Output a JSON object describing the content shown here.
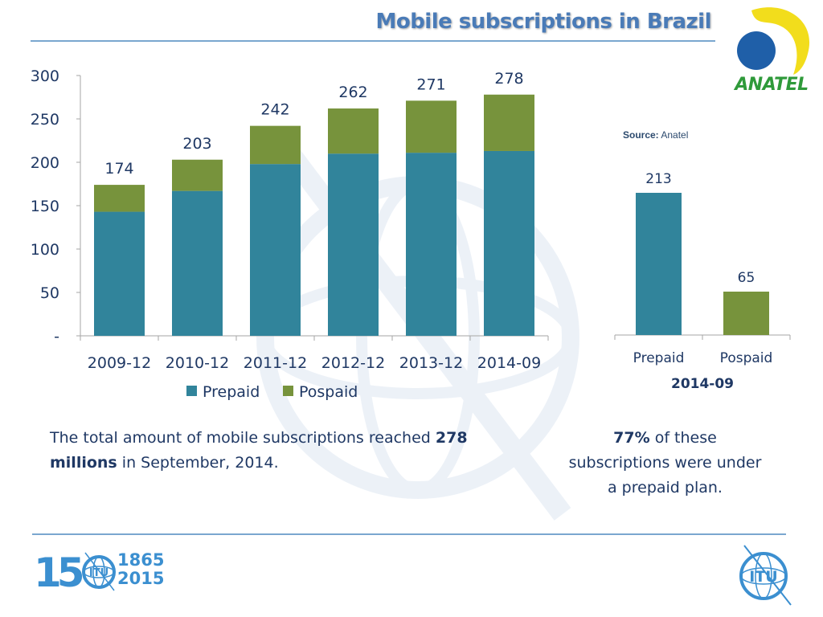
{
  "header": {
    "title": "Mobile subscriptions in Brazil",
    "logo_text": "ANATEL"
  },
  "source": {
    "label": "Source:",
    "value": "Anatel"
  },
  "colors": {
    "prepaid": "#31849b",
    "pospaid": "#77933c",
    "text": "#1f3864",
    "accent": "#4a7bb7"
  },
  "chart_data": [
    {
      "type": "bar",
      "stacked": true,
      "title": "",
      "categories": [
        "2009-12",
        "2010-12",
        "2011-12",
        "2012-12",
        "2013-12",
        "2014-09"
      ],
      "series": [
        {
          "name": "Prepaid",
          "values": [
            143,
            167,
            198,
            210,
            211,
            213
          ]
        },
        {
          "name": "Pospaid",
          "values": [
            31,
            36,
            44,
            52,
            60,
            65
          ]
        }
      ],
      "totals": [
        174,
        203,
        242,
        262,
        271,
        278
      ],
      "total_labels": [
        "174",
        "203",
        "242",
        "262",
        "271",
        "278"
      ],
      "y_ticks": [
        0,
        50,
        100,
        150,
        200,
        250,
        300
      ],
      "y_tick_labels": [
        "-",
        "50",
        "100",
        "150",
        "200",
        "250",
        "300"
      ],
      "ylim": [
        0,
        300
      ],
      "xlabel": "",
      "ylabel": "",
      "grid": false,
      "legend": [
        "Prepaid",
        "Pospaid"
      ],
      "legend_position": "bottom"
    },
    {
      "type": "bar",
      "title": "",
      "categories": [
        "Prepaid",
        "Pospaid"
      ],
      "values": [
        213,
        65
      ],
      "value_labels": [
        "213",
        "65"
      ],
      "xlabel": "2014-09",
      "ylabel": "",
      "ylim": [
        0,
        260
      ],
      "grid": false
    }
  ],
  "notes": {
    "left": {
      "pre": "The total amount of mobile subscriptions reached ",
      "bold1": "278",
      "bold2": "millions",
      "post": " in September, 2014."
    },
    "right": {
      "bold": "77%",
      "post": " of these subscriptions were under a prepaid plan."
    }
  },
  "footer": {
    "itu150_number": "15",
    "itu150_years": [
      "1865",
      "2015"
    ],
    "itu_logo_text": "ITU"
  }
}
